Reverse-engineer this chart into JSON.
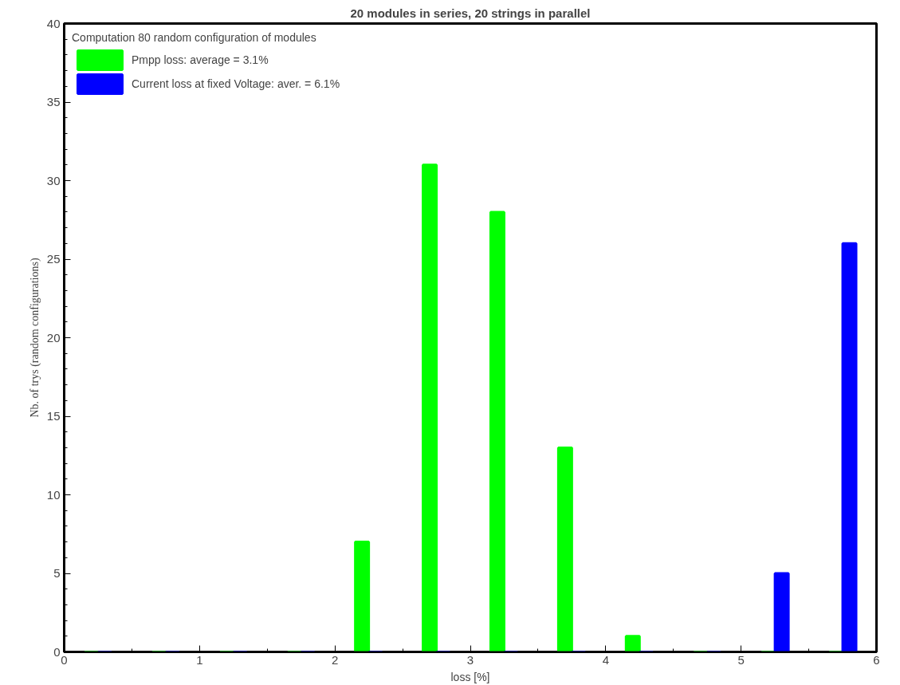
{
  "chart_data": {
    "type": "bar",
    "title": "20 modules in series, 20 strings in parallel",
    "xlabel": "loss [%]",
    "ylabel": "Nb. of trys (random configurations)",
    "legend_title": "Computation 80 random configuration of modules",
    "series": [
      {
        "name": "Pmpp loss: average = 3.1%",
        "color": "#00ff00",
        "x": [
          0.2,
          0.7,
          1.2,
          1.7,
          2.2,
          2.7,
          3.2,
          3.7,
          4.2,
          4.7,
          5.2,
          5.7
        ],
        "values": [
          0,
          0,
          0,
          0,
          7,
          31,
          28,
          13,
          1,
          0,
          0,
          0
        ]
      },
      {
        "name": "Current loss at fixed Voltage: aver. = 6.1%",
        "color": "#0000ff",
        "x": [
          0.3,
          0.8,
          1.3,
          1.8,
          2.3,
          2.8,
          3.3,
          3.8,
          4.3,
          4.8,
          5.3,
          5.8
        ],
        "values": [
          0,
          0,
          0,
          0,
          0,
          0,
          0,
          0,
          0,
          0,
          5,
          26
        ]
      }
    ],
    "xlim": [
      0,
      6
    ],
    "xticks": [
      0,
      1,
      2,
      3,
      4,
      5,
      6
    ],
    "ylim": [
      0,
      40
    ],
    "yticks": [
      0,
      5,
      10,
      15,
      20,
      25,
      30,
      35,
      40
    ],
    "grid": false,
    "legend": "top left"
  }
}
